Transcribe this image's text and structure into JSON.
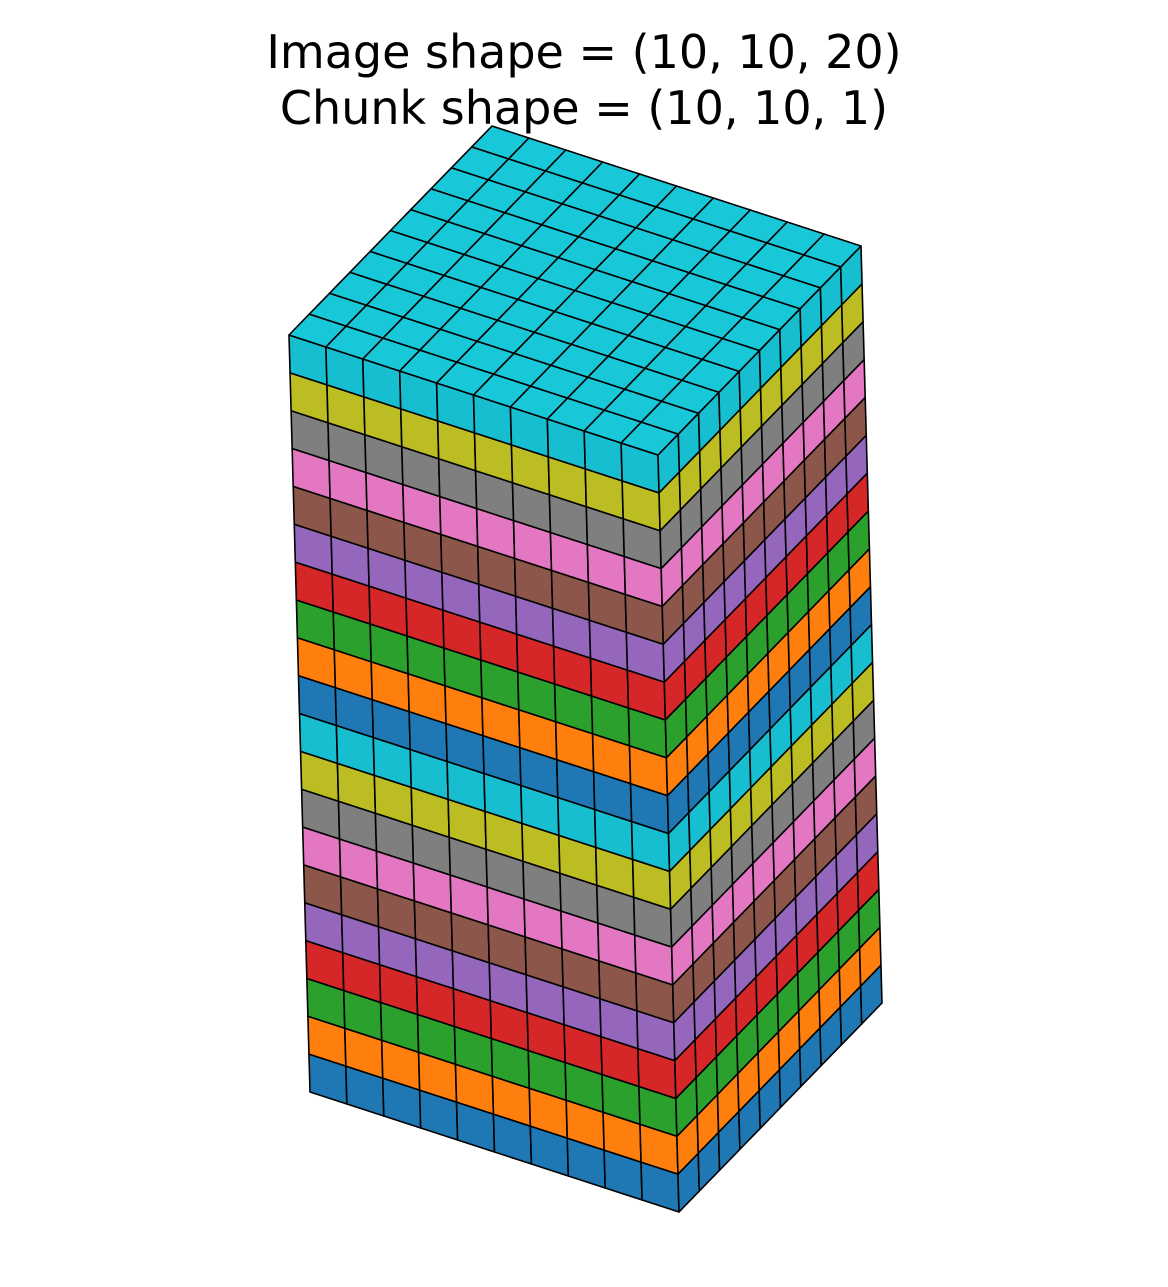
{
  "title": {
    "line1": "Image shape = (10, 10, 20)",
    "line2": "Chunk shape = (10, 10, 1)"
  },
  "image_shape": [
    10,
    10,
    20
  ],
  "chunk_shape": [
    10,
    10,
    1
  ],
  "colors": {
    "chunk_palette": [
      "#1f77b4",
      "#ff7f0e",
      "#2ca02c",
      "#d62728",
      "#9467bd",
      "#8c564b",
      "#e377c2",
      "#7f7f7f",
      "#bcbd22",
      "#17becf"
    ],
    "edge": "#000000"
  }
}
